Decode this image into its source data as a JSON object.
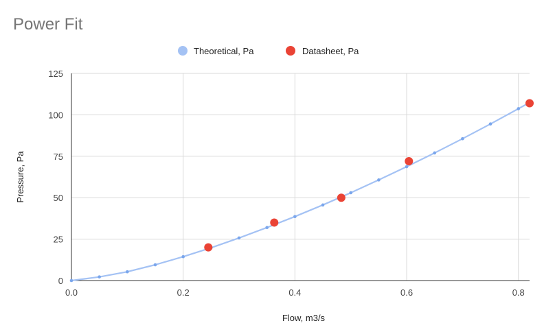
{
  "chart_data": {
    "type": "scatter",
    "title": "Power Fit",
    "xlabel": "Flow, m3/s",
    "ylabel": "Pressure, Pa",
    "xlim": [
      0,
      0.82
    ],
    "ylim": [
      0,
      125
    ],
    "x_ticks": [
      "0.0",
      "0.2",
      "0.4",
      "0.6",
      "0.8"
    ],
    "x_tick_values": [
      0,
      0.2,
      0.4,
      0.6,
      0.8
    ],
    "y_ticks": [
      "0",
      "25",
      "50",
      "75",
      "100",
      "125"
    ],
    "y_tick_values": [
      0,
      25,
      50,
      75,
      100,
      125
    ],
    "grid": true,
    "legend_position": "top",
    "series": [
      {
        "name": "Theoretical, Pa",
        "style": "line-with-points",
        "color": "#a4c2f4",
        "marker_color": "#7aa6ec",
        "points": [
          [
            0,
            0
          ],
          [
            0.05,
            2.2
          ],
          [
            0.1,
            5.3
          ],
          [
            0.15,
            9.5
          ],
          [
            0.2,
            14.4
          ],
          [
            0.25,
            19.8
          ],
          [
            0.3,
            25.7
          ],
          [
            0.35,
            32.0
          ],
          [
            0.4,
            38.6
          ],
          [
            0.45,
            45.6
          ],
          [
            0.5,
            53.0
          ],
          [
            0.55,
            60.7
          ],
          [
            0.6,
            68.7
          ],
          [
            0.65,
            77.0
          ],
          [
            0.7,
            85.6
          ],
          [
            0.75,
            94.5
          ],
          [
            0.8,
            103.7
          ],
          [
            0.82,
            107.4
          ]
        ]
      },
      {
        "name": "Datasheet, Pa",
        "style": "points",
        "color": "#ea4335",
        "points": [
          [
            0.245,
            20
          ],
          [
            0.363,
            35
          ],
          [
            0.483,
            50
          ],
          [
            0.604,
            72
          ],
          [
            0.82,
            107
          ]
        ]
      }
    ]
  }
}
